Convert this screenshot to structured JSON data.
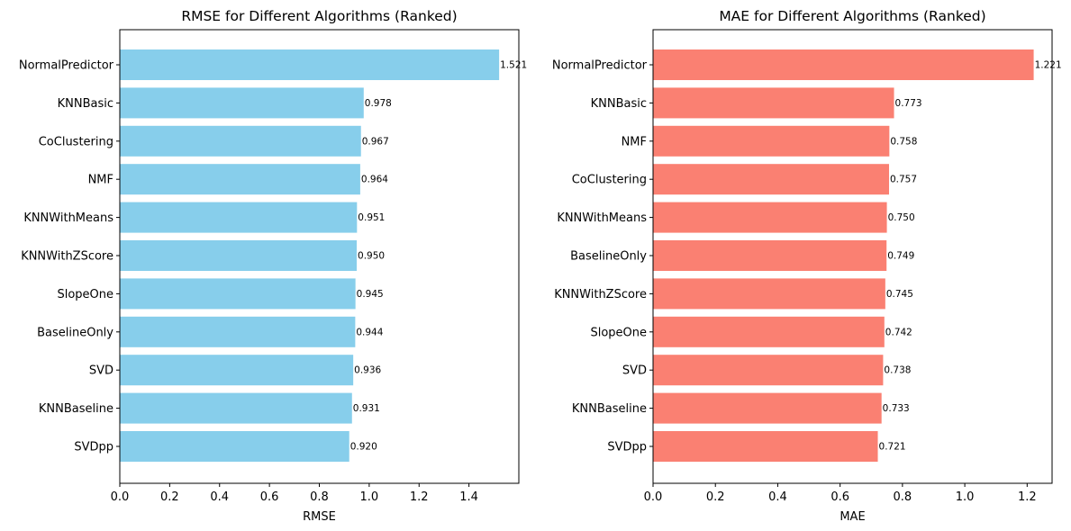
{
  "chart_data": [
    {
      "type": "bar",
      "orientation": "horizontal",
      "title": "RMSE for Different Algorithms (Ranked)",
      "xlabel": "RMSE",
      "ylabel": "",
      "categories": [
        "NormalPredictor",
        "KNNBasic",
        "CoClustering",
        "NMF",
        "KNNWithMeans",
        "KNNWithZScore",
        "SlopeOne",
        "BaselineOnly",
        "SVD",
        "KNNBaseline",
        "SVDpp"
      ],
      "values": [
        1.521,
        0.978,
        0.967,
        0.964,
        0.951,
        0.95,
        0.945,
        0.944,
        0.936,
        0.931,
        0.92
      ],
      "value_labels": [
        "1.521",
        "0.978",
        "0.967",
        "0.964",
        "0.951",
        "0.950",
        "0.945",
        "0.944",
        "0.936",
        "0.931",
        "0.920"
      ],
      "xlim": [
        0,
        1.6
      ],
      "xticks": [
        0.0,
        0.2,
        0.4,
        0.6,
        0.8,
        1.0,
        1.2,
        1.4
      ],
      "xtick_labels": [
        "0.0",
        "0.2",
        "0.4",
        "0.6",
        "0.8",
        "1.0",
        "1.2",
        "1.4"
      ],
      "grid": false,
      "color": "#87ceeb"
    },
    {
      "type": "bar",
      "orientation": "horizontal",
      "title": "MAE for Different Algorithms (Ranked)",
      "xlabel": "MAE",
      "ylabel": "",
      "categories": [
        "NormalPredictor",
        "KNNBasic",
        "NMF",
        "CoClustering",
        "KNNWithMeans",
        "BaselineOnly",
        "KNNWithZScore",
        "SlopeOne",
        "SVD",
        "KNNBaseline",
        "SVDpp"
      ],
      "values": [
        1.221,
        0.773,
        0.758,
        0.757,
        0.75,
        0.749,
        0.745,
        0.742,
        0.738,
        0.733,
        0.721
      ],
      "value_labels": [
        "1.221",
        "0.773",
        "0.758",
        "0.757",
        "0.750",
        "0.749",
        "0.745",
        "0.742",
        "0.738",
        "0.733",
        "0.721"
      ],
      "xlim": [
        0,
        1.28
      ],
      "xticks": [
        0.0,
        0.2,
        0.4,
        0.6,
        0.8,
        1.0,
        1.2
      ],
      "xtick_labels": [
        "0.0",
        "0.2",
        "0.4",
        "0.6",
        "0.8",
        "1.0",
        "1.2"
      ],
      "grid": false,
      "color": "#fa8072"
    }
  ]
}
